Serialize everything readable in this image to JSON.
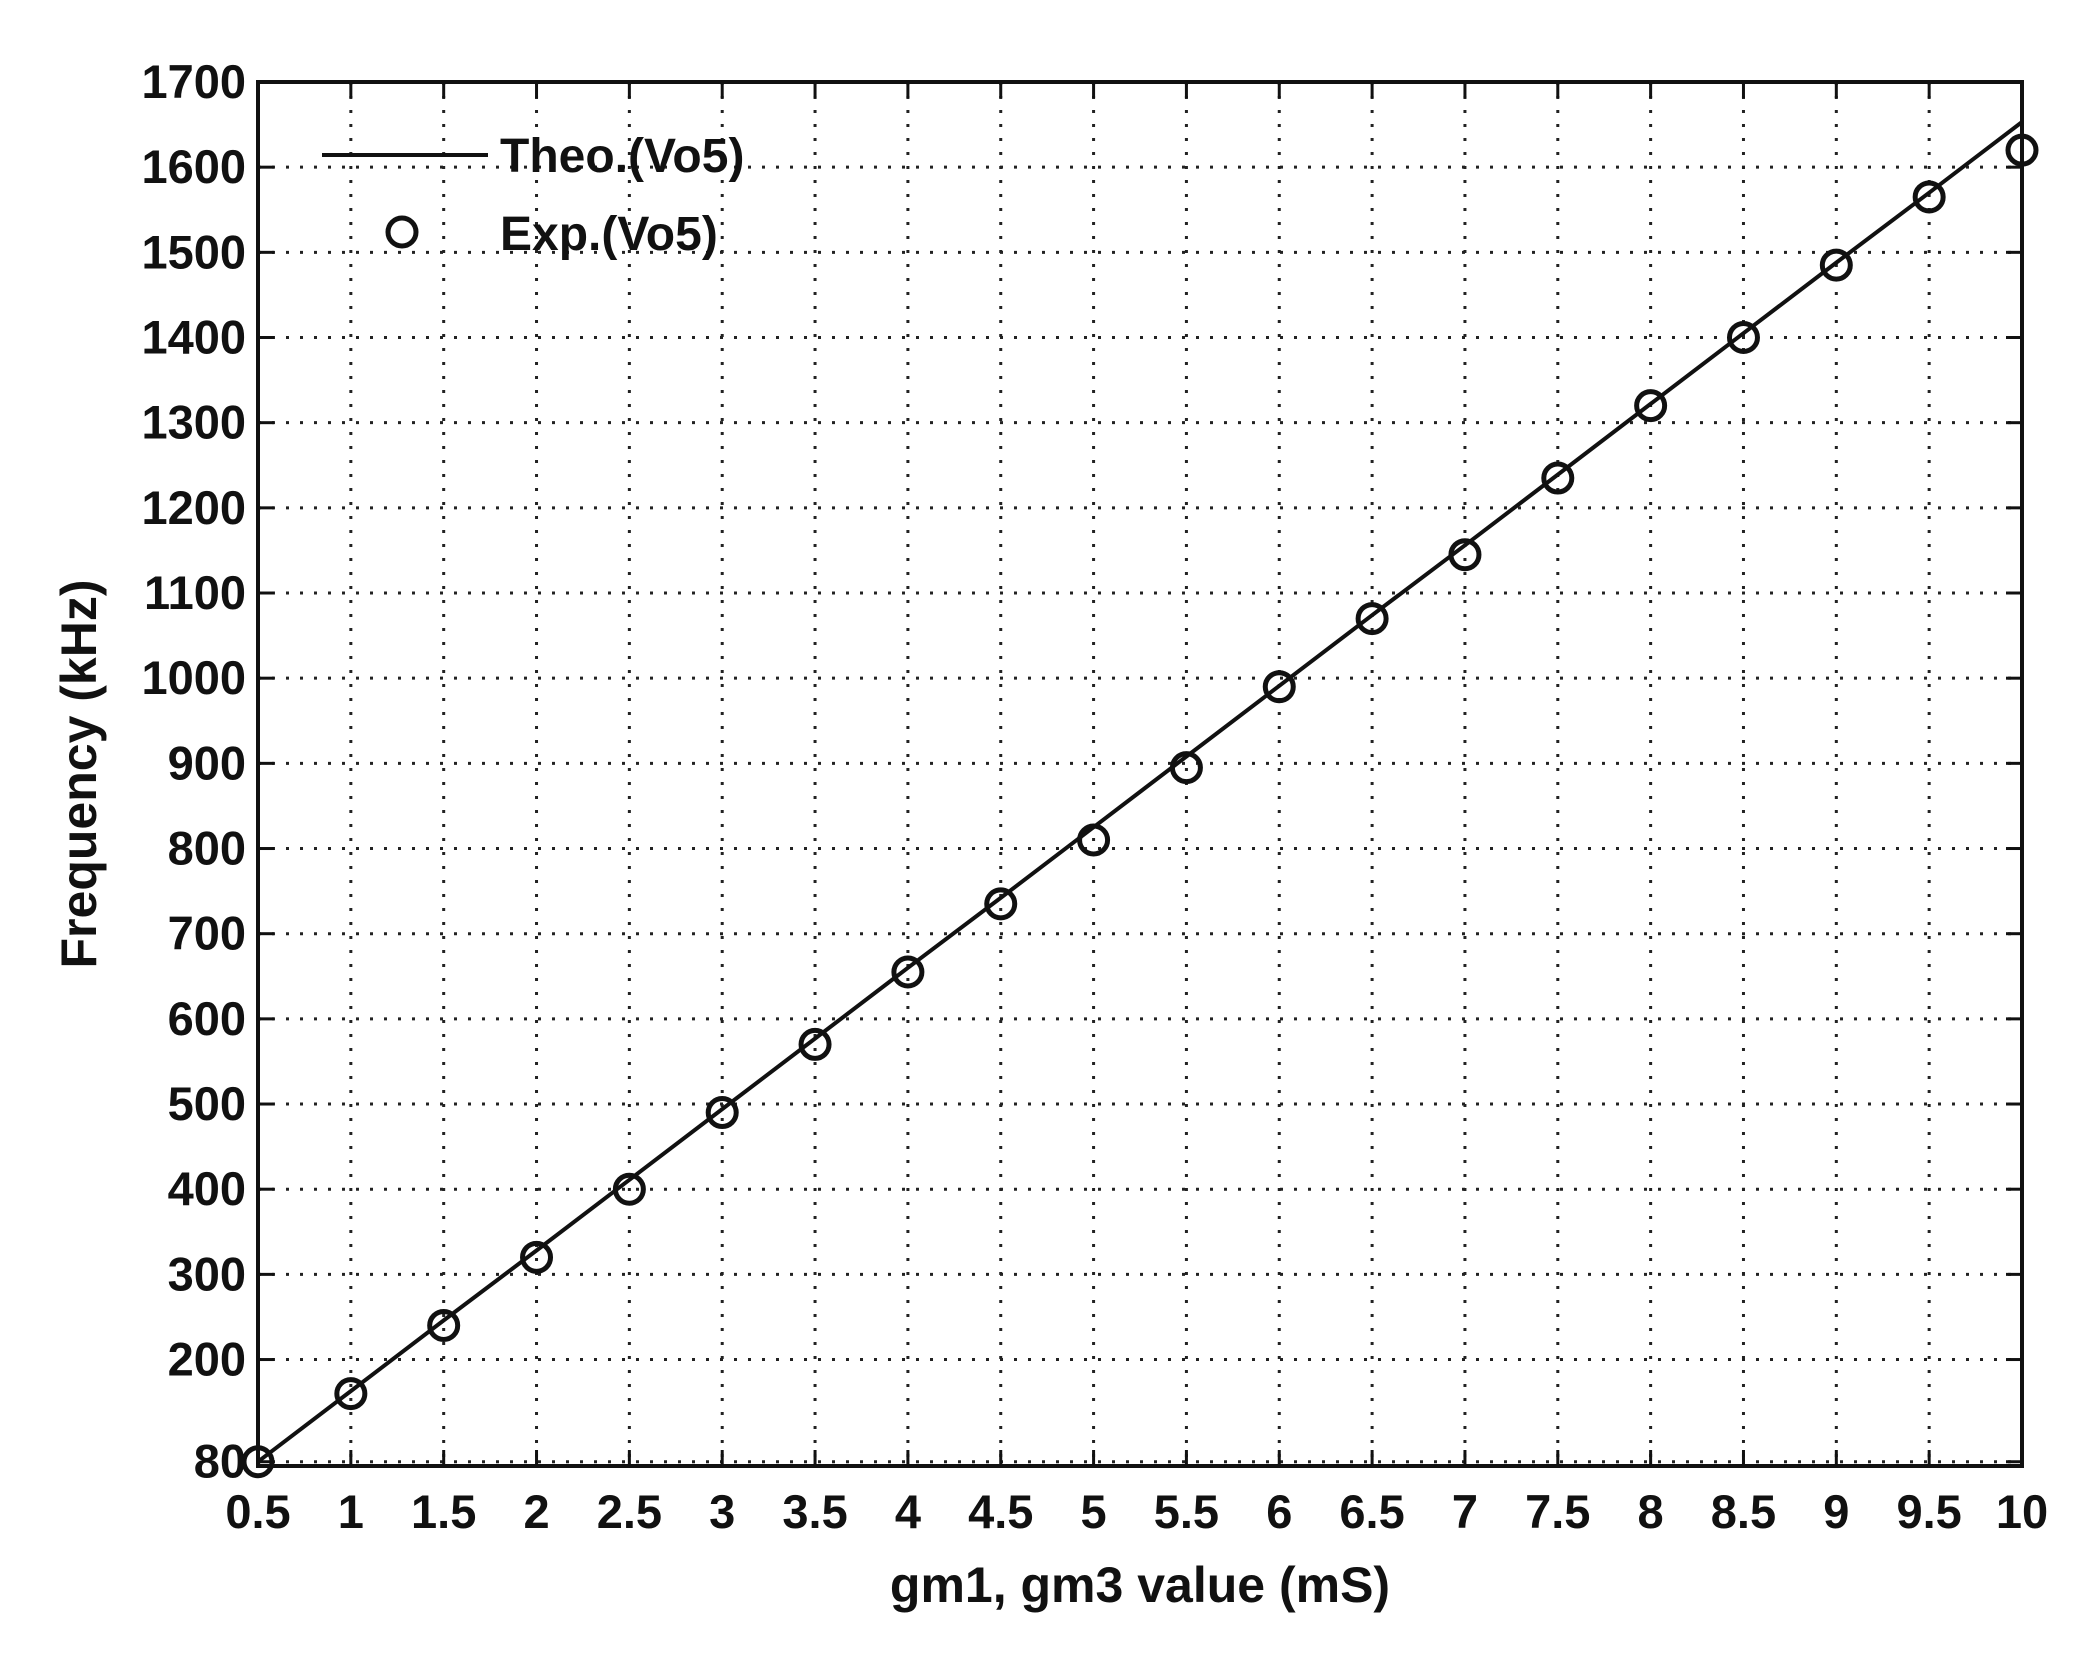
{
  "chart_data": {
    "type": "line",
    "title": "",
    "xlabel": "gm1, gm3 value (mS)",
    "ylabel": "Frequency (kHz)",
    "xlim": [
      0.5,
      10
    ],
    "ylim": [
      75,
      1700
    ],
    "x_ticks": [
      "0.5",
      "1",
      "1.5",
      "2",
      "2.5",
      "3",
      "3.5",
      "4",
      "4.5",
      "5",
      "5.5",
      "6",
      "6.5",
      "7",
      "7.5",
      "8",
      "8.5",
      "9",
      "9.5",
      "10"
    ],
    "y_tick_values": [
      80,
      200,
      300,
      400,
      500,
      600,
      700,
      800,
      900,
      1000,
      1100,
      1200,
      1300,
      1400,
      1500,
      1600,
      1700
    ],
    "y_ticks": [
      "80",
      "200",
      "300",
      "400",
      "500",
      "600",
      "700",
      "800",
      "900",
      "1000",
      "1100",
      "1200",
      "1300",
      "1400",
      "1500",
      "1600",
      "1700"
    ],
    "grid": true,
    "legend_position": "top-left",
    "series": [
      {
        "name": "Theo.(Vo5)",
        "style": "line",
        "color": "#111111",
        "x": [
          0.5,
          1,
          1.5,
          2,
          2.5,
          3,
          3.5,
          4,
          4.5,
          5,
          5.5,
          6,
          6.5,
          7,
          7.5,
          8,
          8.5,
          9,
          9.5,
          10
        ],
        "y": [
          80,
          163,
          246,
          328,
          411,
          494,
          577,
          660,
          742,
          825,
          908,
          991,
          1074,
          1156,
          1239,
          1322,
          1405,
          1488,
          1570,
          1653
        ]
      },
      {
        "name": "Exp.(Vo5)",
        "style": "marker",
        "color": "#111111",
        "x": [
          0.5,
          1,
          1.5,
          2,
          2.5,
          3,
          3.5,
          4,
          4.5,
          5,
          5.5,
          6,
          6.5,
          7,
          7.5,
          8,
          8.5,
          9,
          9.5,
          10
        ],
        "y": [
          80,
          160,
          240,
          320,
          400,
          490,
          570,
          655,
          735,
          810,
          895,
          990,
          1070,
          1145,
          1235,
          1320,
          1400,
          1485,
          1565,
          1620
        ]
      }
    ]
  }
}
